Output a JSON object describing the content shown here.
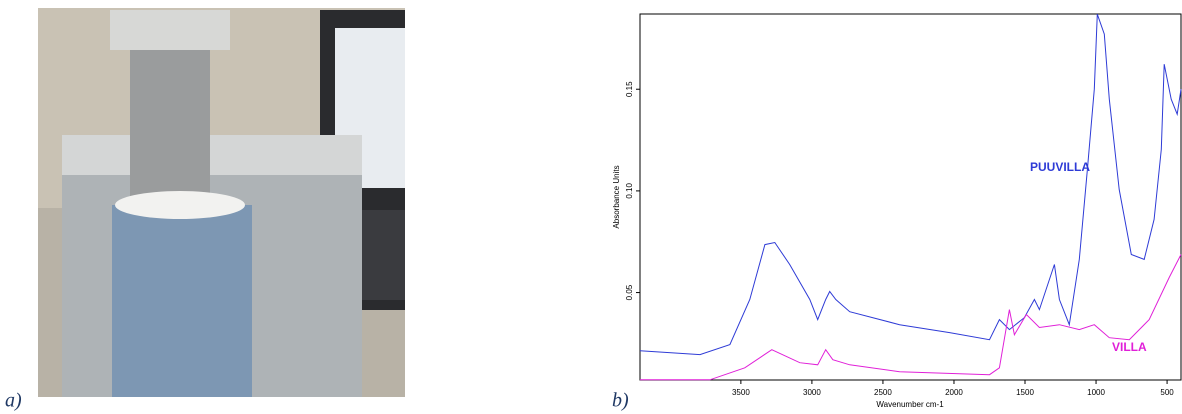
{
  "panel_labels": [
    "a)",
    "b)"
  ],
  "chart_data": {
    "type": "line",
    "xlabel": "Wavenumber cm-1",
    "ylabel": "Absorbance Units",
    "xlim": [
      4210,
      402
    ],
    "ylim": [
      0.007,
      0.187
    ],
    "xticks": [
      3500,
      3000,
      2500,
      2000,
      1500,
      1000,
      500
    ],
    "yticks": [
      0.05,
      {
        "value": 0.1,
        "label": "0.10"
      },
      0.15
    ],
    "series": [
      {
        "name": "PUUVILLA",
        "color": "#2e3bd6",
        "x": [
          4210,
          3788,
          3577,
          3437,
          3331,
          3261,
          3156,
          3015,
          2959,
          2903,
          2875,
          2832,
          2734,
          2383,
          2031,
          1750,
          1680,
          1610,
          1504,
          1434,
          1399,
          1293,
          1258,
          1188,
          1118,
          1061,
          1012,
          991,
          942,
          907,
          837,
          752,
          661,
          591,
          541,
          520,
          471,
          429,
          402
        ],
        "values": [
          0.0214,
          0.0195,
          0.0244,
          0.0466,
          0.0736,
          0.0746,
          0.0638,
          0.0466,
          0.0367,
          0.0466,
          0.0505,
          0.0466,
          0.0406,
          0.0342,
          0.0303,
          0.0268,
          0.0367,
          0.0318,
          0.0377,
          0.0466,
          0.0416,
          0.0638,
          0.0466,
          0.0342,
          0.0663,
          0.1106,
          0.15,
          0.1869,
          0.1771,
          0.1451,
          0.1007,
          0.0687,
          0.0663,
          0.086,
          0.1204,
          0.1623,
          0.1451,
          0.1377,
          0.15
        ]
      },
      {
        "name": "VILLA",
        "color": "#e020d8",
        "x": [
          4210,
          3718,
          3472,
          3282,
          3085,
          2959,
          2903,
          2853,
          2734,
          2383,
          1750,
          1680,
          1610,
          1575,
          1490,
          1399,
          1258,
          1118,
          1012,
          907,
          766,
          626,
          485,
          402
        ],
        "values": [
          0.0071,
          0.0071,
          0.013,
          0.0219,
          0.0155,
          0.0145,
          0.0219,
          0.017,
          0.0145,
          0.0111,
          0.0096,
          0.013,
          0.0416,
          0.0293,
          0.0392,
          0.0328,
          0.0342,
          0.0318,
          0.0342,
          0.0278,
          0.0268,
          0.0367,
          0.0574,
          0.0687
        ]
      }
    ]
  }
}
